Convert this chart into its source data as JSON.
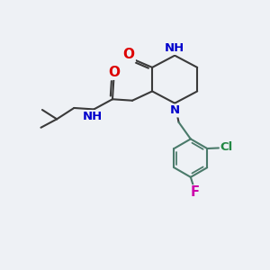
{
  "bg_color": "#eef1f5",
  "bond_color": "#3a3a3a",
  "bond_width": 1.5,
  "atom_colors": {
    "O": "#dd0000",
    "N": "#0000cc",
    "Cl": "#228844",
    "F": "#cc00aa",
    "H": "#0000cc",
    "C": "#3a3a3a"
  },
  "font_size": 9.5
}
